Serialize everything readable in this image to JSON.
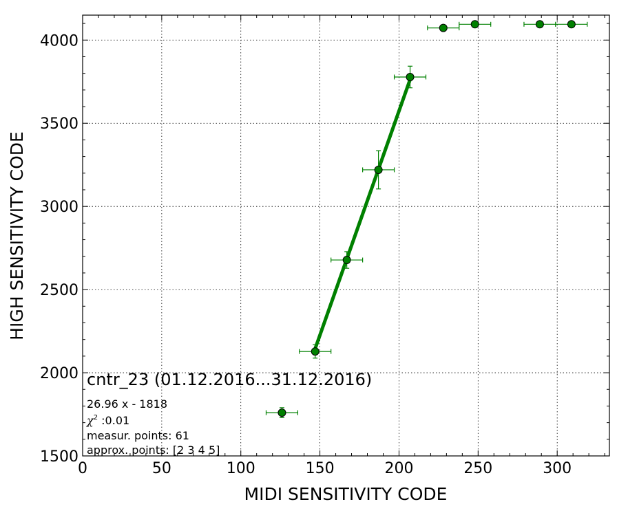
{
  "chart_data": {
    "type": "scatter",
    "xlabel": "MIDI SENSITIVITY CODE",
    "ylabel": "HIGH SENSITIVITY CODE",
    "xlim": [
      0,
      333
    ],
    "ylim": [
      1500,
      4150
    ],
    "x_ticks": [
      0,
      50,
      100,
      150,
      200,
      250,
      300
    ],
    "y_ticks": [
      1500,
      2000,
      2500,
      3000,
      3500,
      4000
    ],
    "grid": true,
    "marker_color": "#008000",
    "line_color": "#008000",
    "points": [
      {
        "x": 126,
        "y": 1760,
        "xerr": 10,
        "yerr": 30
      },
      {
        "x": 147,
        "y": 2128,
        "xerr": 10,
        "yerr": 40
      },
      {
        "x": 167,
        "y": 2678,
        "xerr": 10,
        "yerr": 50
      },
      {
        "x": 187,
        "y": 3220,
        "xerr": 10,
        "yerr": 115
      },
      {
        "x": 207,
        "y": 3778,
        "xerr": 10,
        "yerr": 65
      },
      {
        "x": 228,
        "y": 4073,
        "xerr": 10,
        "yerr": 0
      },
      {
        "x": 248,
        "y": 4095,
        "xerr": 10,
        "yerr": 0
      },
      {
        "x": 289,
        "y": 4095,
        "xerr": 10,
        "yerr": 0
      },
      {
        "x": 309,
        "y": 4095,
        "xerr": 10,
        "yerr": 0
      }
    ],
    "fit": {
      "slope": 26.96,
      "intercept": -1818,
      "x_range": [
        147,
        207
      ]
    },
    "annotation": {
      "title": "cntr_23 (01.12.2016...31.12.2016)",
      "formula": "26.96 x - 1818",
      "chi2_symbol": "χ",
      "chi2_sup": "2",
      "chi2_value": " :0.01",
      "measur_points": "measur. points: 61",
      "approx_points": "approx. points: [2 3 4 5]"
    }
  }
}
